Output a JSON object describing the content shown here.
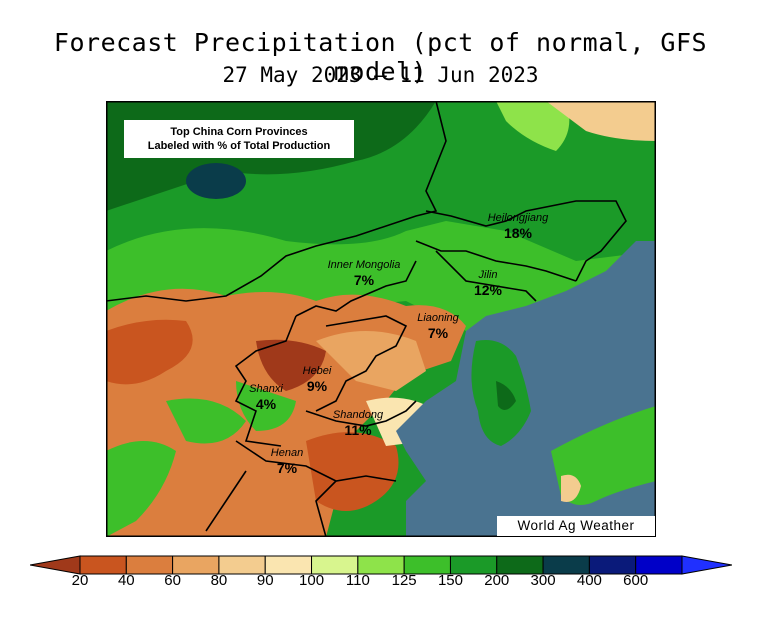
{
  "header": {
    "title": "Forecast Precipitation (pct of normal, GFS model)",
    "subtitle": "27 May 2023 – 11 Jun 2023"
  },
  "map": {
    "note_line1": "Top China Corn Provinces",
    "note_line2": "Labeled with % of Total Production",
    "credit": "World Ag Weather",
    "provinces": [
      {
        "name": "Heilongjiang",
        "share": "18%"
      },
      {
        "name": "Inner Mongolia",
        "share": "7%"
      },
      {
        "name": "Jilin",
        "share": "12%"
      },
      {
        "name": "Liaoning",
        "share": "7%"
      },
      {
        "name": "Hebei",
        "share": "9%"
      },
      {
        "name": "Shanxi",
        "share": "4%"
      },
      {
        "name": "Shandong",
        "share": "11%"
      },
      {
        "name": "Henan",
        "share": "7%"
      }
    ]
  },
  "colorbar": {
    "ticks": [
      "20",
      "40",
      "60",
      "80",
      "90",
      "100",
      "110",
      "125",
      "150",
      "200",
      "300",
      "400",
      "600"
    ],
    "colors": [
      "#a0391a",
      "#c9551f",
      "#db7e3e",
      "#e9a561",
      "#f3cc8f",
      "#fae5b0",
      "#d8f58e",
      "#8ee34a",
      "#3dbf2a",
      "#1b9a28",
      "#0d6a19",
      "#0a3c4a",
      "#0a1a7a",
      "#0000c8",
      "#2030ff"
    ]
  }
}
